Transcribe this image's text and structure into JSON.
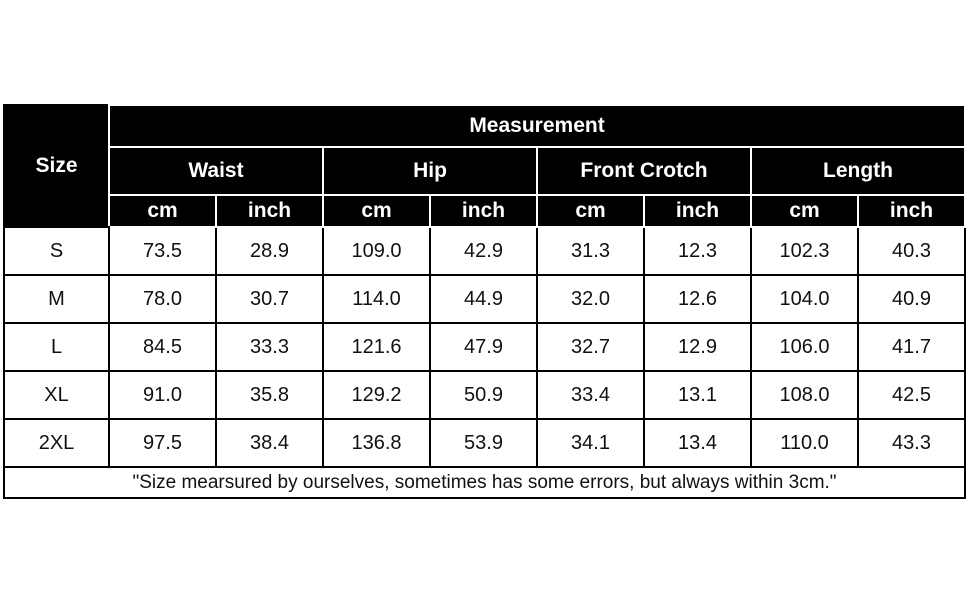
{
  "header": {
    "size": "Size",
    "measurement": "Measurement",
    "groups": [
      "Waist",
      "Hip",
      "Front Crotch",
      "Length"
    ],
    "units": [
      "cm",
      "inch",
      "cm",
      "inch",
      "cm",
      "inch",
      "cm",
      "inch"
    ]
  },
  "rows": [
    {
      "size": "S",
      "values": [
        "73.5",
        "28.9",
        "109.0",
        "42.9",
        "31.3",
        "12.3",
        "102.3",
        "40.3"
      ]
    },
    {
      "size": "M",
      "values": [
        "78.0",
        "30.7",
        "114.0",
        "44.9",
        "32.0",
        "12.6",
        "104.0",
        "40.9"
      ]
    },
    {
      "size": "L",
      "values": [
        "84.5",
        "33.3",
        "121.6",
        "47.9",
        "32.7",
        "12.9",
        "106.0",
        "41.7"
      ]
    },
    {
      "size": "XL",
      "values": [
        "91.0",
        "35.8",
        "129.2",
        "50.9",
        "33.4",
        "13.1",
        "108.0",
        "42.5"
      ]
    },
    {
      "size": "2XL",
      "values": [
        "97.5",
        "38.4",
        "136.8",
        "53.9",
        "34.1",
        "13.4",
        "110.0",
        "43.3"
      ]
    }
  ],
  "note": "\"Size mearsured by ourselves, sometimes has some errors, but always within 3cm.\""
}
